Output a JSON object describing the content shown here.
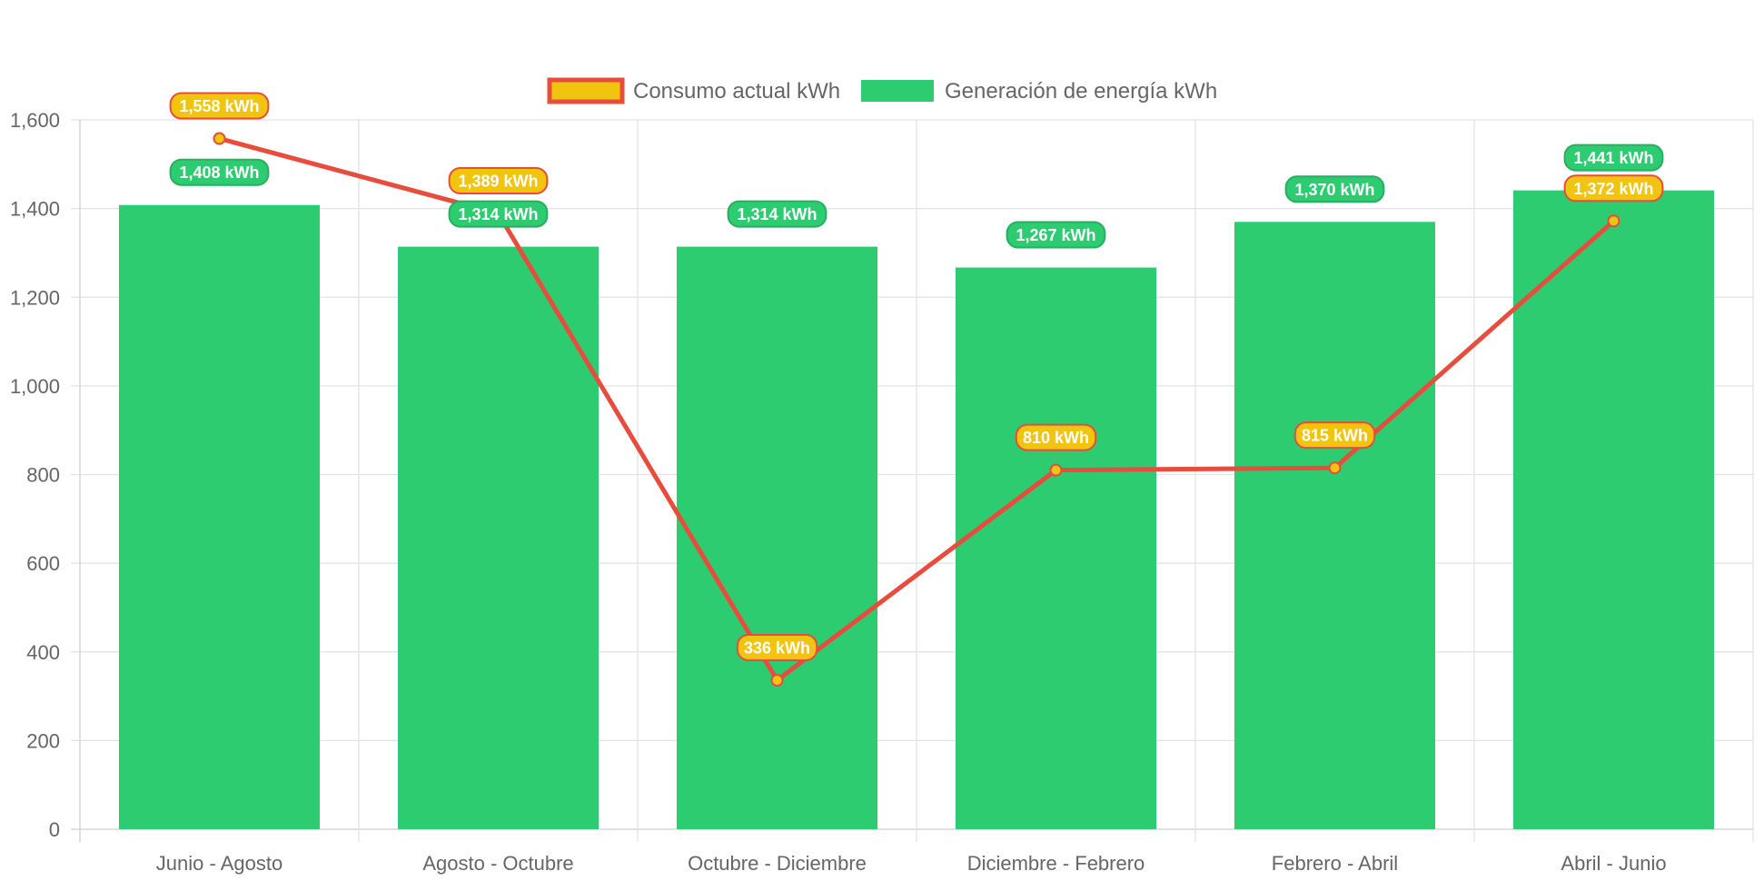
{
  "chart_data": {
    "type": "bar",
    "categories": [
      "Junio - Agosto",
      "Agosto - Octubre",
      "Octubre - Diciembre",
      "Diciembre - Febrero",
      "Febrero - Abril",
      "Abril - Junio"
    ],
    "ylim": [
      0,
      1600
    ],
    "yticks": [
      "0",
      "200",
      "400",
      "600",
      "800",
      "1,000",
      "1,200",
      "1,400",
      "1,600"
    ],
    "ytick_values": [
      0,
      200,
      400,
      600,
      800,
      1000,
      1200,
      1400,
      1600
    ],
    "grid": true,
    "legend_position": "top-center",
    "series": [
      {
        "name": "Consumo actual kWh",
        "type": "line",
        "values": [
          1558,
          1389,
          336,
          810,
          815,
          1372
        ],
        "labels": [
          "1,558 kWh",
          "1,389 kWh",
          "336 kWh",
          "810 kWh",
          "815 kWh",
          "1,372 kWh"
        ],
        "color": "#E74C3C",
        "point_color": "#F1C40F"
      },
      {
        "name": "Generación de energía kWh",
        "type": "bar",
        "values": [
          1408,
          1314,
          1314,
          1267,
          1370,
          1441
        ],
        "labels": [
          "1,408 kWh",
          "1,314 kWh",
          "1,314 kWh",
          "1,267 kWh",
          "1,370 kWh",
          "1,441 kWh"
        ],
        "color": "#2ECC71",
        "label_border": "#27AE60"
      }
    ]
  }
}
